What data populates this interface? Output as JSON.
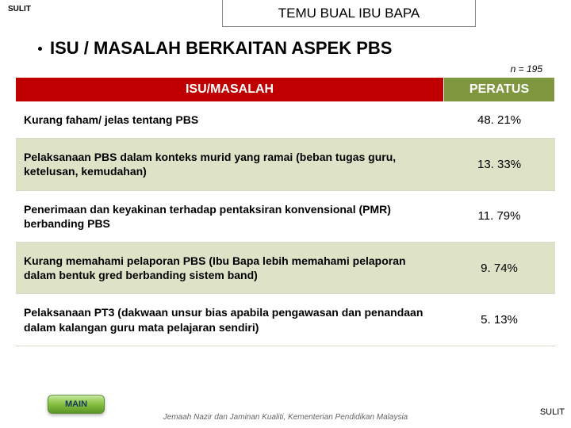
{
  "header": {
    "classification": "SULIT",
    "title": "TEMU BUAL IBU BAPA",
    "subtitle": "ISU / MASALAH BERKAITAN ASPEK PBS",
    "n_label": "n = 195"
  },
  "table": {
    "header_bg_1": "#c00000",
    "header_bg_2": "#7f9840",
    "header_color": "#ffffff",
    "row_alt_bg": "#dee3c8",
    "columns": [
      "ISU/MASALAH",
      "PERATUS"
    ],
    "rows": [
      {
        "label": "Kurang faham/ jelas tentang PBS",
        "value": "48. 21%"
      },
      {
        "label": "Pelaksanaan PBS dalam konteks murid yang ramai (beban tugas guru, ketelusan, kemudahan)",
        "value": "13. 33%"
      },
      {
        "label": "Penerimaan dan keyakinan terhadap pentaksiran konvensional (PMR) berbanding PBS",
        "value": "11. 79%"
      },
      {
        "label": "Kurang memahami pelaporan PBS (Ibu Bapa lebih memahami pelaporan dalam bentuk gred berbanding sistem band)",
        "value": "9. 74%"
      },
      {
        "label": "Pelaksanaan PT3 (dakwaan unsur bias apabila pengawasan dan penandaan dalam kalangan guru  mata pelajaran sendiri)",
        "value": "5. 13%"
      }
    ]
  },
  "footer": {
    "main_button": "MAIN",
    "credit": "Jemaah Nazir dan Jaminan Kualiti, Kementerian Pendidikan Malaysia",
    "classification": "SULIT"
  }
}
